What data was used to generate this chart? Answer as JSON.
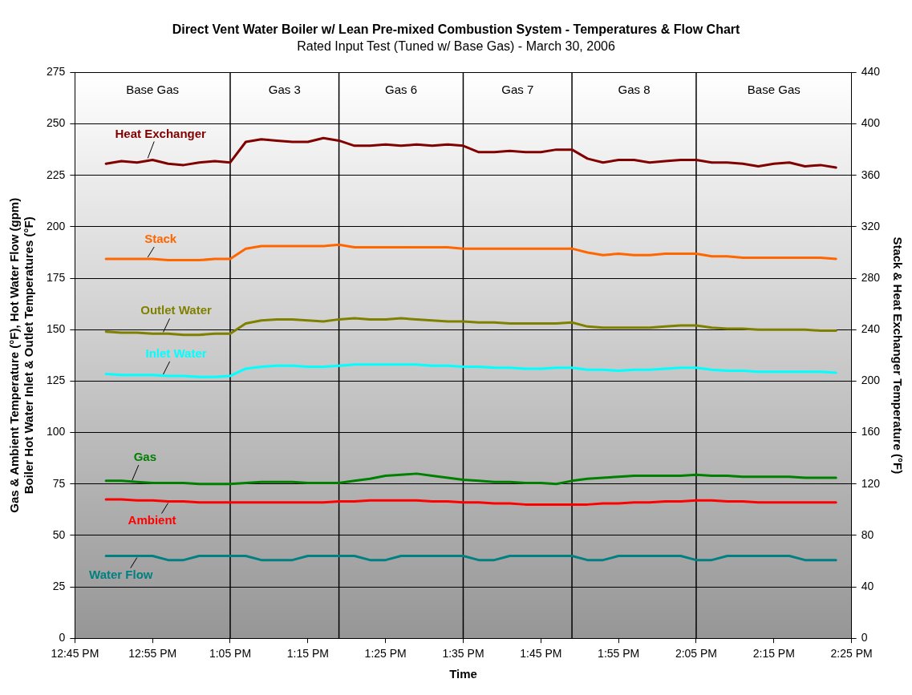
{
  "chart_data": {
    "type": "line",
    "title": "Direct Vent Water Boiler w/ Lean Pre-mixed Combustion System - Temperatures & Flow Chart",
    "subtitle": "Rated Input Test (Tuned w/ Base Gas) - March 30, 2006",
    "xlabel": "Time",
    "ylabel": "Gas & Ambient Temperature (°F), Hot Water Flow (gpm)\nBoiler Hot Water Inlet & Outlet Temperatures (°F)",
    "y2label": "Stack & Heat Exchanger Temperature (°F)",
    "x": [
      12.8167,
      12.85,
      12.8833,
      12.9167,
      12.95,
      12.9833,
      13.0167,
      13.05,
      13.0833,
      13.1167,
      13.15,
      13.1833,
      13.2167,
      13.25,
      13.2833,
      13.3167,
      13.35,
      13.3833,
      13.4167,
      13.45,
      13.4833,
      13.5167,
      13.55,
      13.5833,
      13.6167,
      13.65,
      13.6833,
      13.7167,
      13.75,
      13.7833,
      13.8167,
      13.85,
      13.8833,
      13.9167,
      13.95,
      13.9833,
      14.0167,
      14.05,
      14.0833,
      14.1167,
      14.15,
      14.1833,
      14.2167,
      14.25,
      14.2833,
      14.3167,
      14.35,
      14.3833
    ],
    "xlim": [
      12.75,
      14.4167
    ],
    "xticks": [
      {
        "value": 12.75,
        "label": "12:45 PM"
      },
      {
        "value": 12.9167,
        "label": "12:55 PM"
      },
      {
        "value": 13.0833,
        "label": "1:05 PM"
      },
      {
        "value": 13.25,
        "label": "1:15 PM"
      },
      {
        "value": 13.4167,
        "label": "1:25 PM"
      },
      {
        "value": 13.5833,
        "label": "1:35 PM"
      },
      {
        "value": 13.75,
        "label": "1:45 PM"
      },
      {
        "value": 13.9167,
        "label": "1:55 PM"
      },
      {
        "value": 14.0833,
        "label": "2:05 PM"
      },
      {
        "value": 14.25,
        "label": "2:15 PM"
      },
      {
        "value": 14.4167,
        "label": "2:25 PM"
      }
    ],
    "ylim": [
      0,
      275
    ],
    "yticks": [
      0,
      25,
      50,
      75,
      100,
      125,
      150,
      175,
      200,
      225,
      250,
      275
    ],
    "y2lim": [
      0,
      440
    ],
    "y2ticks": [
      0,
      40,
      80,
      120,
      160,
      200,
      240,
      280,
      320,
      360,
      400,
      440
    ],
    "grid": "y",
    "legend": false,
    "marker": "none",
    "line_style": "solid",
    "ref_lines": [
      {
        "axis": "x",
        "value": 13.0833
      },
      {
        "axis": "x",
        "value": 13.3167
      },
      {
        "axis": "x",
        "value": 13.5833
      },
      {
        "axis": "x",
        "value": 13.8167
      },
      {
        "axis": "x",
        "value": 14.0833
      }
    ],
    "annotations": [
      "Base Gas",
      "Gas 3",
      "Gas 6",
      "Gas 7",
      "Gas 8",
      "Base Gas"
    ],
    "series": [
      {
        "name": "Heat Exchanger",
        "color": "#800000",
        "axis": "y2",
        "values": [
          369,
          371,
          370,
          372,
          369,
          368,
          370,
          371,
          370,
          386,
          388,
          387,
          386,
          386,
          389,
          387,
          383,
          383,
          384,
          383,
          384,
          383,
          384,
          383,
          378,
          378,
          379,
          378,
          378,
          380,
          380,
          373,
          370,
          372,
          372,
          370,
          371,
          372,
          372,
          370,
          370,
          369,
          367,
          369,
          370,
          367,
          368,
          366
        ]
      },
      {
        "name": "Stack",
        "color": "#ff6600",
        "axis": "y2",
        "values": [
          295,
          295,
          295,
          295,
          294,
          294,
          294,
          295,
          295,
          303,
          305,
          305,
          305,
          305,
          305,
          306,
          304,
          304,
          304,
          304,
          304,
          304,
          304,
          303,
          303,
          303,
          303,
          303,
          303,
          303,
          303,
          300,
          298,
          299,
          298,
          298,
          299,
          299,
          299,
          297,
          297,
          296,
          296,
          296,
          296,
          296,
          296,
          295
        ]
      },
      {
        "name": "Outlet Water",
        "color": "#808000",
        "values": [
          149,
          148.5,
          148.5,
          148,
          148,
          147.5,
          147.5,
          148,
          148,
          153,
          154.5,
          155,
          155,
          154.5,
          154,
          155,
          155.5,
          155,
          155,
          155.5,
          155,
          154.5,
          154,
          154,
          153.5,
          153.5,
          153,
          153,
          153,
          153,
          153.5,
          151.5,
          151,
          151,
          151,
          151,
          151.5,
          152,
          152,
          151,
          150.5,
          150.5,
          150,
          150,
          150,
          150,
          149.5,
          149.5
        ]
      },
      {
        "name": "Inlet Water",
        "color": "#00ffff",
        "values": [
          128.5,
          128,
          128,
          128,
          127.5,
          127.5,
          127,
          127,
          127.5,
          131,
          132,
          132.5,
          132.5,
          132,
          132,
          132.5,
          133,
          133,
          133,
          133,
          133,
          132.5,
          132.5,
          132,
          132,
          131.5,
          131.5,
          131,
          131,
          131.5,
          131.5,
          130.5,
          130.5,
          130,
          130.5,
          130.5,
          131,
          131.5,
          131.5,
          130.5,
          130,
          130,
          129.5,
          129.5,
          129.5,
          129.5,
          129.5,
          129
        ]
      },
      {
        "name": "Gas",
        "color": "#008000",
        "values": [
          76.5,
          76.5,
          76,
          75.5,
          75.5,
          75.5,
          75,
          75,
          75,
          75.5,
          76,
          76,
          76,
          75.5,
          75.5,
          75.5,
          76.5,
          77.5,
          79,
          79.5,
          80,
          79,
          78,
          77,
          76.5,
          76,
          76,
          75.5,
          75.5,
          75,
          76.5,
          77.5,
          78,
          78.5,
          79,
          79,
          79,
          79,
          79.5,
          79,
          79,
          78.5,
          78.5,
          78.5,
          78.5,
          78,
          78,
          78
        ]
      },
      {
        "name": "Ambient",
        "color": "#ff0000",
        "values": [
          67.5,
          67.5,
          67,
          67,
          66.5,
          66.5,
          66,
          66,
          66,
          66,
          66,
          66,
          66,
          66,
          66,
          66.5,
          66.5,
          67,
          67,
          67,
          67,
          66.5,
          66.5,
          66,
          66,
          65.5,
          65.5,
          65,
          65,
          65,
          65,
          65,
          65.5,
          65.5,
          66,
          66,
          66.5,
          66.5,
          67,
          67,
          66.5,
          66.5,
          66,
          66,
          66,
          66,
          66,
          66
        ]
      },
      {
        "name": "Water Flow",
        "color": "#008080",
        "values": [
          40,
          40,
          40,
          40,
          38,
          38,
          40,
          40,
          40,
          40,
          38,
          38,
          38,
          40,
          40,
          40,
          40,
          38,
          38,
          40,
          40,
          40,
          40,
          40,
          38,
          38,
          40,
          40,
          40,
          40,
          40,
          38,
          38,
          40,
          40,
          40,
          40,
          40,
          38,
          38,
          40,
          40,
          40,
          40,
          40,
          38,
          38,
          38
        ]
      }
    ]
  }
}
